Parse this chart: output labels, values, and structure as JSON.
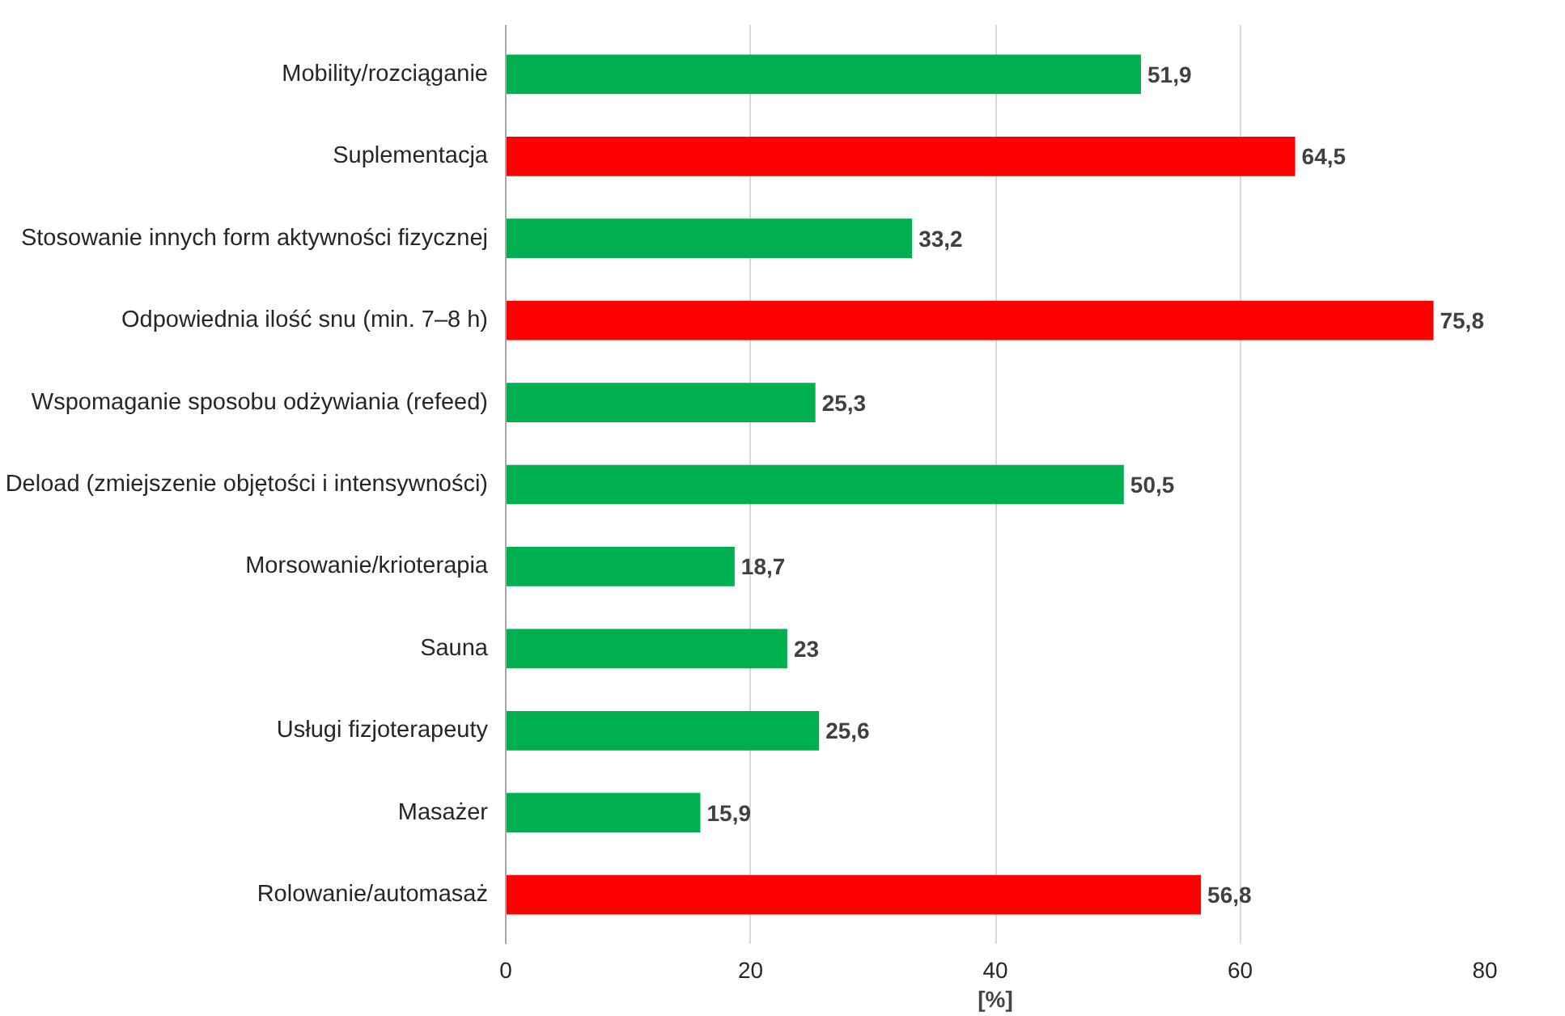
{
  "chart_data": {
    "type": "bar",
    "orientation": "horizontal",
    "categories": [
      "Mobility/rozciąganie",
      "Suplementacja",
      "Stosowanie innych form aktywności fizycznej",
      "Odpowiednia ilość snu (min. 7–8 h)",
      "Wspomaganie sposobu odżywiania (refeed)",
      "Deload (zmiejszenie objętości i intensywności)",
      "Morsowanie/krioterapia",
      "Sauna",
      "Usługi fizjoterapeuty",
      "Masażer",
      "Rolowanie/automasaż"
    ],
    "values": [
      51.9,
      64.5,
      33.2,
      75.8,
      25.3,
      50.5,
      18.7,
      23,
      25.6,
      15.9,
      56.8
    ],
    "value_labels": [
      "51,9",
      "64,5",
      "33,2",
      "75,8",
      "25,3",
      "50,5",
      "18,7",
      "23",
      "25,6",
      "15,9",
      "56,8"
    ],
    "colors": [
      "#00b050",
      "#ff0000",
      "#00b050",
      "#ff0000",
      "#00b050",
      "#00b050",
      "#00b050",
      "#00b050",
      "#00b050",
      "#00b050",
      "#ff0000"
    ],
    "xlabel": "[%]",
    "xlim": [
      0,
      80
    ],
    "xticks": [
      0,
      20,
      40,
      60,
      80
    ],
    "grid": "x"
  }
}
